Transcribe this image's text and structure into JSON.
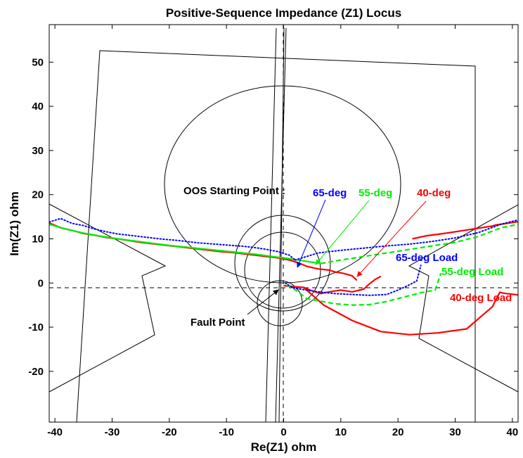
{
  "chart_data": {
    "type": "line",
    "title": "Positive-Sequence Impedance (Z1) Locus",
    "xlabel": "Re(Z1) ohm",
    "ylabel": "Im(Z1) ohm",
    "xlim": [
      -41,
      41
    ],
    "ylim": [
      -31.5,
      58.5
    ],
    "xticks": [
      -40,
      -30,
      -20,
      -10,
      0,
      10,
      20,
      30,
      40
    ],
    "yticks": [
      -20,
      -10,
      0,
      10,
      20,
      30,
      40,
      50
    ],
    "grid": false,
    "colors": {
      "red": "#ff0000",
      "green": "#00ee00",
      "blue": "#0000ff",
      "black": "#000000"
    },
    "series": [
      {
        "name": "40-deg",
        "color": "#ff0000",
        "style": "solid",
        "x": [
          -41,
          -39,
          -37,
          -35,
          -33,
          -31,
          -29,
          -27,
          -25,
          -23,
          -21,
          -19,
          -17,
          -15,
          -13,
          -11,
          -9,
          -7,
          -5,
          -3,
          -1,
          1,
          2.5,
          4,
          6,
          8,
          9,
          10,
          11,
          12,
          12.5,
          12.8
        ],
        "y": [
          13.6,
          12.5,
          11.9,
          11.2,
          10.8,
          10.3,
          10.0,
          9.6,
          9.2,
          8.9,
          8.6,
          8.3,
          8.0,
          7.7,
          7.4,
          7.1,
          6.9,
          6.6,
          6.3,
          6.0,
          5.7,
          5.2,
          4.6,
          3.8,
          3.2,
          2.9,
          2.5,
          2.3,
          2.0,
          1.6,
          1.0,
          0.6
        ]
      },
      {
        "name": "40-deg",
        "color": "#ff0000",
        "style": "solid",
        "x": [
          22.5,
          25,
          28,
          31,
          34,
          36.5,
          37,
          39,
          41
        ],
        "y": [
          10.0,
          10.7,
          11.2,
          11.8,
          12.4,
          12.9,
          13.1,
          13.5,
          13.9
        ]
      },
      {
        "name": "40-deg Load",
        "color": "#ff0000",
        "style": "solid",
        "x": [
          0,
          1.5,
          3.5,
          5,
          6.5,
          8,
          10,
          12,
          14,
          15,
          16,
          17
        ],
        "y": [
          -0.6,
          -0.8,
          -1.0,
          -1.8,
          -2.4,
          -2.0,
          -1.6,
          -2.0,
          -1.4,
          -0.2,
          0.8,
          1.5
        ]
      },
      {
        "name": "40-deg Load",
        "color": "#ff0000",
        "style": "solid",
        "x": [
          3.5,
          7,
          12,
          17,
          22,
          27,
          32,
          36.5,
          37.8,
          38.4,
          39.6,
          41
        ],
        "y": [
          -1.0,
          -5.0,
          -8.5,
          -11.0,
          -11.7,
          -11.3,
          -10.4,
          -5.4,
          -2.1,
          -2.3,
          -2.5,
          -2.7
        ]
      },
      {
        "name": "55-deg",
        "color": "#00ee00",
        "style": "solid",
        "x": [
          -41,
          -38,
          -35,
          -32,
          -29,
          -26,
          -23,
          -20,
          -17,
          -14,
          -11,
          -8,
          -5,
          -2,
          1,
          3,
          5,
          6.5
        ],
        "y": [
          13.3,
          12.2,
          11.3,
          10.6,
          10.0,
          9.5,
          9.0,
          8.5,
          8.1,
          7.7,
          7.3,
          6.9,
          6.5,
          6.0,
          5.5,
          5.1,
          4.7,
          4.4
        ]
      },
      {
        "name": "55-deg",
        "color": "#00ee00",
        "style": "dashed",
        "x": [
          6.5,
          10,
          14,
          18,
          22,
          26,
          30,
          34,
          38,
          41
        ],
        "y": [
          4.4,
          5.2,
          6.0,
          6.8,
          7.6,
          8.4,
          9.2,
          10.5,
          12.5,
          13.3
        ]
      },
      {
        "name": "55-deg Load",
        "color": "#00ee00",
        "style": "dashed",
        "x": [
          0.5,
          2,
          4,
          6,
          9,
          12,
          15,
          18,
          21,
          24,
          26.5,
          27.5
        ],
        "y": [
          -0.4,
          -1.5,
          -3.5,
          -4.0,
          -4.7,
          -5.0,
          -4.9,
          -4.2,
          -3.2,
          -2.2,
          -1.6,
          2.2
        ]
      },
      {
        "name": "65-deg",
        "color": "#0000ff",
        "style": "dotted",
        "x": [
          -41,
          -39,
          -37,
          -35,
          -33,
          -31,
          -29,
          -27,
          -25,
          -23,
          -21,
          -19,
          -17,
          -15,
          -13,
          -11,
          -9,
          -7,
          -5,
          -3,
          -1,
          1,
          2
        ],
        "y": [
          13.8,
          14.6,
          13.5,
          13.0,
          12.2,
          11.6,
          11.1,
          10.8,
          10.5,
          10.2,
          9.9,
          9.7,
          9.4,
          9.1,
          8.9,
          8.7,
          8.5,
          8.3,
          8.0,
          7.6,
          7.1,
          6.3,
          5.2
        ]
      },
      {
        "name": "65-deg",
        "color": "#0000ff",
        "style": "dotted",
        "x": [
          2,
          6,
          10,
          14,
          18,
          22,
          26,
          30,
          34,
          38,
          41
        ],
        "y": [
          5.2,
          6.8,
          7.4,
          7.9,
          8.4,
          8.8,
          9.4,
          10.2,
          11.4,
          13.3,
          14.3
        ]
      },
      {
        "name": "65-deg Load",
        "color": "#0000ff",
        "style": "dotted",
        "x": [
          0.3,
          1,
          2,
          4,
          6,
          9,
          12,
          15,
          18,
          20,
          22,
          23.3,
          24
        ],
        "y": [
          0,
          -0.6,
          -1.2,
          -1.6,
          -2.0,
          -2.4,
          -2.6,
          -2.8,
          -2.6,
          -1.6,
          -0.4,
          0.5,
          4.0
        ]
      }
    ],
    "annotations": [
      {
        "text": "OOS Starting Point :",
        "color": "#000000"
      },
      {
        "text": "65-deg",
        "color": "#0000ff"
      },
      {
        "text": "55-deg",
        "color": "#00ee00"
      },
      {
        "text": "40-deg",
        "color": "#ff0000"
      },
      {
        "text": "65-deg Load",
        "color": "#0000ff"
      },
      {
        "text": "55-deg Load",
        "color": "#00ee00"
      },
      {
        "text": "40-deg Load",
        "color": "#ff0000"
      },
      {
        "text": "Fault Point",
        "color": "#000000"
      }
    ]
  }
}
